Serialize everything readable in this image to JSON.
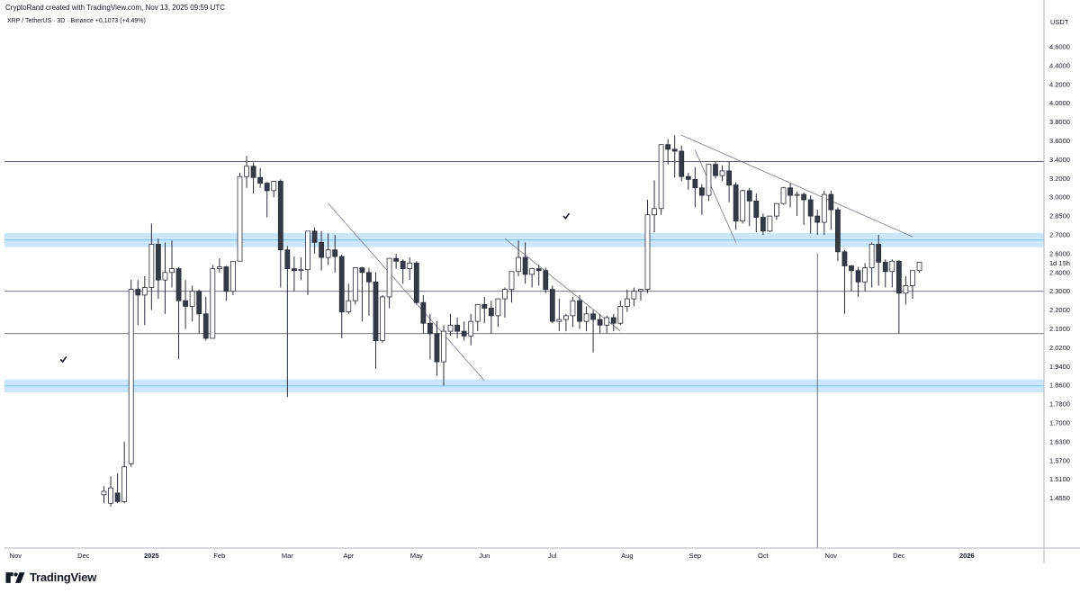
{
  "header": {
    "credit": "CryptoRand created with TradingView.com, Nov 13, 2025 09:59 UTC",
    "symbol": "XRP / TetherUS · 3D · Binance",
    "change": "+0.1073 (+4.49%)"
  },
  "brand": {
    "name": "TradingView"
  },
  "chart_data": {
    "type": "candlestick",
    "currency_label": "USDT",
    "y_ticks": [
      "4.6000",
      "4.4000",
      "4.2000",
      "4.0000",
      "3.8000",
      "3.6000",
      "3.4000",
      "3.2000",
      "3.0000",
      "2.8500",
      "2.7000",
      "2.6000",
      "2.4000",
      "2.3000",
      "2.2000",
      "2.1000",
      "2.0200",
      "1.9400",
      "1.8600",
      "1.7800",
      "1.7000",
      "1.6300",
      "1.5700",
      "1.5100",
      "1.4550"
    ],
    "countdown_label": "1d 15h",
    "x_labels": [
      {
        "label": "Nov",
        "idx": -13
      },
      {
        "label": "Dec",
        "idx": -3
      },
      {
        "label": "2025",
        "idx": 7
      },
      {
        "label": "Feb",
        "idx": 17
      },
      {
        "label": "Mar",
        "idx": 27
      },
      {
        "label": "Apr",
        "idx": 36
      },
      {
        "label": "May",
        "idx": 46
      },
      {
        "label": "Jun",
        "idx": 56
      },
      {
        "label": "Jul",
        "idx": 66
      },
      {
        "label": "Aug",
        "idx": 77
      },
      {
        "label": "Sep",
        "idx": 87
      },
      {
        "label": "Oct",
        "idx": 97
      },
      {
        "label": "Nov",
        "idx": 107
      },
      {
        "label": "Dec",
        "idx": 117
      },
      {
        "label": "2026",
        "idx": 127
      }
    ],
    "candles": [
      [
        1.465,
        1.49,
        1.475,
        1.44
      ],
      [
        1.44,
        1.52,
        1.485,
        1.43
      ],
      [
        1.47,
        1.53,
        1.445,
        1.44
      ],
      [
        1.445,
        1.63,
        1.55,
        1.44
      ],
      [
        1.56,
        2.36,
        2.31,
        1.55
      ],
      [
        2.31,
        2.36,
        2.28,
        2.12
      ],
      [
        2.28,
        2.38,
        2.32,
        2.12
      ],
      [
        2.32,
        2.79,
        2.65,
        2.2
      ],
      [
        2.65,
        2.68,
        2.36,
        2.26
      ],
      [
        2.36,
        2.66,
        2.4,
        2.18
      ],
      [
        2.4,
        2.67,
        2.44,
        2.32
      ],
      [
        2.44,
        2.46,
        2.25,
        1.97
      ],
      [
        2.25,
        2.36,
        2.22,
        2.1
      ],
      [
        2.22,
        2.33,
        2.3,
        2.14
      ],
      [
        2.3,
        2.31,
        2.18,
        2.08
      ],
      [
        2.18,
        2.27,
        2.06,
        2.05
      ],
      [
        2.06,
        2.48,
        2.44,
        2.08
      ],
      [
        2.44,
        2.55,
        2.46,
        2.4
      ],
      [
        2.46,
        2.47,
        2.3,
        2.25
      ],
      [
        2.3,
        2.49,
        2.52,
        2.28
      ],
      [
        2.52,
        3.26,
        3.22,
        2.59
      ],
      [
        3.22,
        3.44,
        3.33,
        3.1
      ],
      [
        3.33,
        3.37,
        3.21,
        3.04
      ],
      [
        3.21,
        3.31,
        3.15,
        3.1
      ],
      [
        3.15,
        3.16,
        3.07,
        2.84
      ],
      [
        3.07,
        3.12,
        3.17,
        3.0
      ],
      [
        3.17,
        3.19,
        2.62,
        2.32
      ],
      [
        2.62,
        2.64,
        2.44,
        1.81
      ],
      [
        2.44,
        2.57,
        2.42,
        2.3
      ],
      [
        2.42,
        2.56,
        2.43,
        2.36
      ],
      [
        2.43,
        2.67,
        2.73,
        2.28
      ],
      [
        2.73,
        2.76,
        2.66,
        2.6
      ],
      [
        2.66,
        2.73,
        2.56,
        2.42
      ],
      [
        2.56,
        2.71,
        2.62,
        2.48
      ],
      [
        2.62,
        2.7,
        2.57,
        2.4
      ],
      [
        2.57,
        2.59,
        2.19,
        2.06
      ],
      [
        2.19,
        2.34,
        2.25,
        2.18
      ],
      [
        2.25,
        2.34,
        2.45,
        2.23
      ],
      [
        2.45,
        2.46,
        2.4,
        2.14
      ],
      [
        2.4,
        2.45,
        2.35,
        2.17
      ],
      [
        2.35,
        2.4,
        2.05,
        1.93
      ],
      [
        2.05,
        2.28,
        2.27,
        2.04
      ],
      [
        2.27,
        2.42,
        2.55,
        2.21
      ],
      [
        2.55,
        2.6,
        2.52,
        2.44
      ],
      [
        2.52,
        2.54,
        2.44,
        2.34
      ],
      [
        2.44,
        2.56,
        2.5,
        2.36
      ],
      [
        2.5,
        2.52,
        2.24,
        2.23
      ],
      [
        2.24,
        2.28,
        2.13,
        2.08
      ],
      [
        2.13,
        2.18,
        2.08,
        1.97
      ],
      [
        2.08,
        2.14,
        1.96,
        1.9
      ],
      [
        1.96,
        2.12,
        2.09,
        1.86
      ],
      [
        2.09,
        2.18,
        2.12,
        2.07
      ],
      [
        2.12,
        2.16,
        2.09,
        2.06
      ],
      [
        2.09,
        2.14,
        2.07,
        2.05
      ],
      [
        2.07,
        2.18,
        2.14,
        2.03
      ],
      [
        2.14,
        2.23,
        2.23,
        2.09
      ],
      [
        2.23,
        2.27,
        2.21,
        2.13
      ],
      [
        2.21,
        2.25,
        2.17,
        2.08
      ],
      [
        2.17,
        2.25,
        2.26,
        2.11
      ],
      [
        2.26,
        2.32,
        2.31,
        2.16
      ],
      [
        2.31,
        2.38,
        2.41,
        2.24
      ],
      [
        2.41,
        2.67,
        2.56,
        2.38
      ],
      [
        2.56,
        2.66,
        2.39,
        2.34
      ],
      [
        2.39,
        2.45,
        2.44,
        2.32
      ],
      [
        2.44,
        2.48,
        2.42,
        2.33
      ],
      [
        2.42,
        2.45,
        2.31,
        2.29
      ],
      [
        2.31,
        2.33,
        2.14,
        2.13
      ],
      [
        2.14,
        2.26,
        2.15,
        2.09
      ],
      [
        2.15,
        2.18,
        2.17,
        2.09
      ],
      [
        2.17,
        2.27,
        2.25,
        2.11
      ],
      [
        2.25,
        2.28,
        2.14,
        2.1
      ],
      [
        2.14,
        2.22,
        2.18,
        2.09
      ],
      [
        2.18,
        2.2,
        2.15,
        2.0
      ],
      [
        2.15,
        2.18,
        2.12,
        2.08
      ],
      [
        2.12,
        2.17,
        2.16,
        2.08
      ],
      [
        2.16,
        2.18,
        2.13,
        2.09
      ],
      [
        2.13,
        2.25,
        2.22,
        2.12
      ],
      [
        2.22,
        2.31,
        2.26,
        2.19
      ],
      [
        2.26,
        2.32,
        2.3,
        2.22
      ],
      [
        2.3,
        2.31,
        2.31,
        2.25
      ],
      [
        2.31,
        2.98,
        2.86,
        2.29
      ],
      [
        2.86,
        3.18,
        2.91,
        2.72
      ],
      [
        2.91,
        3.36,
        3.56,
        2.86
      ],
      [
        3.56,
        3.62,
        3.51,
        3.35
      ],
      [
        3.51,
        3.66,
        3.49,
        3.21
      ],
      [
        3.49,
        3.55,
        3.22,
        3.17
      ],
      [
        3.22,
        3.26,
        3.19,
        3.08
      ],
      [
        3.19,
        3.32,
        3.1,
        2.92
      ],
      [
        3.1,
        3.14,
        3.02,
        2.86
      ],
      [
        3.02,
        3.18,
        3.35,
        2.97
      ],
      [
        3.35,
        3.38,
        3.23,
        3.2
      ],
      [
        3.23,
        3.34,
        3.28,
        3.17
      ],
      [
        3.28,
        3.38,
        3.13,
        2.96
      ],
      [
        3.13,
        3.16,
        2.81,
        2.74
      ],
      [
        2.81,
        3.08,
        3.07,
        2.79
      ],
      [
        3.07,
        3.1,
        2.97,
        2.77
      ],
      [
        2.97,
        3.04,
        2.84,
        2.72
      ],
      [
        2.84,
        2.87,
        2.73,
        2.7
      ],
      [
        2.73,
        2.83,
        2.85,
        2.72
      ],
      [
        2.85,
        2.92,
        2.95,
        2.82
      ],
      [
        2.95,
        3.11,
        3.1,
        2.94
      ],
      [
        3.1,
        3.15,
        3.02,
        2.92
      ],
      [
        3.02,
        3.06,
        3.03,
        2.85
      ],
      [
        3.03,
        3.05,
        2.98,
        2.78
      ],
      [
        2.98,
        3.02,
        2.85,
        2.71
      ],
      [
        2.85,
        2.9,
        2.8,
        2.7
      ],
      [
        2.8,
        3.07,
        3.03,
        2.7
      ],
      [
        3.03,
        3.07,
        2.9,
        2.74
      ],
      [
        2.9,
        2.92,
        2.61,
        2.52
      ],
      [
        2.61,
        2.62,
        2.47,
        2.18
      ],
      [
        2.47,
        2.48,
        2.42,
        2.3
      ],
      [
        2.42,
        2.46,
        2.35,
        2.27
      ],
      [
        2.35,
        2.5,
        2.45,
        2.3
      ],
      [
        2.45,
        2.66,
        2.65,
        2.32
      ],
      [
        2.65,
        2.7,
        2.51,
        2.33
      ],
      [
        2.51,
        2.54,
        2.41,
        2.32
      ],
      [
        2.41,
        2.54,
        2.52,
        2.32
      ],
      [
        2.52,
        2.53,
        2.29,
        2.08
      ],
      [
        2.29,
        2.38,
        2.33,
        2.23
      ],
      [
        2.33,
        2.42,
        2.42,
        2.26
      ],
      [
        2.42,
        2.48,
        2.51,
        2.4
      ]
    ],
    "horizontal_lines": [
      3.38,
      2.3,
      2.08
    ],
    "zones": [
      [
        2.635,
        2.715
      ],
      [
        1.83,
        1.885
      ]
    ],
    "trendlines": [
      {
        "from": [
          1,
          3.66
        ],
        "to": [
          35,
          2.69
        ]
      },
      {
        "from": [
          -51,
          2.95
        ],
        "to": [
          -28,
          1.88
        ]
      },
      {
        "from": [
          -25,
          2.68
        ],
        "to": [
          -8,
          2.09
        ]
      },
      {
        "from": [
          3,
          3.5
        ],
        "to": [
          9,
          2.66
        ]
      }
    ],
    "trendline_anchor": "peak",
    "vertical_line_idx": 105,
    "check_marks": [
      {
        "idx": -6,
        "price": 1.97
      },
      {
        "idx": 68,
        "price": 2.85
      }
    ]
  }
}
